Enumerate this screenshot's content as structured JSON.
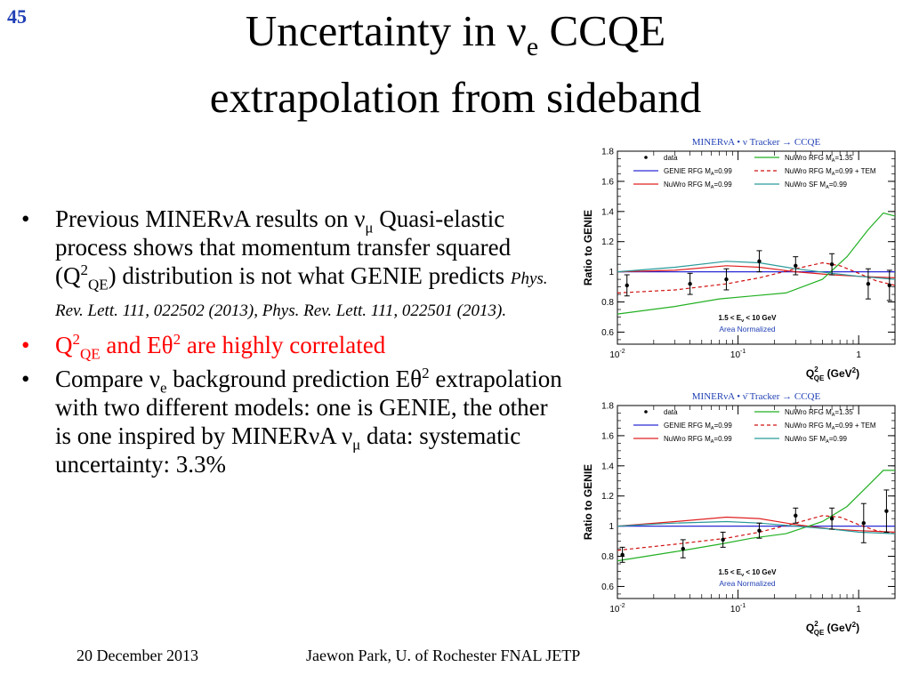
{
  "slide_number": "45",
  "title": {
    "line1_pre": "Uncertainty in ν",
    "line1_sub": "e",
    "line1_post": " CCQE",
    "line2": "extrapolation from sideband"
  },
  "bullets": {
    "b1_a": "Previous MINERνA results on ν",
    "b1_sub1": "μ",
    "b1_b": " Quasi-elastic process shows that momentum transfer squared (Q",
    "b1_sup": "2",
    "b1_sub2": "QE",
    "b1_c": ") distribution is not what GENIE predicts ",
    "b1_ref": "Phys. Rev. Lett. 111, 022502 (2013), Phys. Rev. Lett. 111, 022501 (2013).",
    "b2_a": "Q",
    "b2_sup1": "2",
    "b2_sub": "QE",
    "b2_b": "  and Eθ",
    "b2_sup2": "2",
    "b2_c": "  are highly correlated",
    "b3_a": "Compare ν",
    "b3_sub1": "e",
    "b3_b": " background prediction Eθ",
    "b3_sup": "2",
    "b3_c": " extrapolation with two different models: one is GENIE, the other is one inspired by MINERνA ν",
    "b3_sub2": "μ",
    "b3_d": " data:  systematic uncertainty:  3.3%"
  },
  "footer": {
    "date": "20 December 2013",
    "author": "Jaewon Park, U. of Rochester  FNAL JETP"
  },
  "colors": {
    "slide_number": "#1f3fb4",
    "highlight_bullet": "#ff0000",
    "plot_header": "#1f3fb4",
    "area_normalized": "#1f3fb4"
  },
  "chart_data": [
    {
      "type": "line",
      "title": "MINERνA •  ν Tracker → CCQE",
      "xlabel": "Q",
      "xlabel_sup": "2",
      "xlabel_sub": "QE",
      "xlabel_unit": " (GeV",
      "xlabel_unit_sup": "2",
      "xlabel_close": ")",
      "ylabel": "Ratio to GENIE",
      "xscale": "log",
      "xlim": [
        0.01,
        2
      ],
      "ylim": [
        0.52,
        1.8
      ],
      "yticks": [
        0.6,
        0.8,
        1,
        1.2,
        1.4,
        1.6,
        1.8
      ],
      "ytick_labels": [
        "0.6",
        "0.8",
        "1",
        "1.2",
        "1.4",
        "1.6",
        "1.8"
      ],
      "xticks": [
        0.01,
        0.1,
        1
      ],
      "xtick_base": [
        "10",
        "10",
        "1"
      ],
      "xtick_exp": [
        "-2",
        "-1",
        ""
      ],
      "grid": false,
      "legend_placement": "top",
      "annotation_range": "1.5 < E",
      "annotation_range_sub": "ν",
      "annotation_range_post": " < 10 GeV",
      "annotation_norm": "Area Normalized",
      "series": [
        {
          "name": "data",
          "kind": "points",
          "color": "#000000",
          "x": [
            0.012,
            0.04,
            0.08,
            0.15,
            0.3,
            0.6,
            1.2,
            1.8
          ],
          "y": [
            0.91,
            0.92,
            0.95,
            1.07,
            1.04,
            1.05,
            0.92,
            0.91
          ],
          "err": [
            0.07,
            0.07,
            0.07,
            0.07,
            0.06,
            0.07,
            0.1,
            0.1
          ]
        },
        {
          "name": "GENIE RFG M",
          "name_sub": "A",
          "name_post": "=0.99",
          "kind": "line",
          "color": "#2a2ad6",
          "dash": "",
          "x": [
            0.01,
            2
          ],
          "y": [
            1.0,
            1.0
          ]
        },
        {
          "name": "NuWro RFG M",
          "name_sub": "A",
          "name_post": "=0.99",
          "kind": "line",
          "color": "#e02020",
          "dash": "",
          "x": [
            0.01,
            0.03,
            0.08,
            0.15,
            0.3,
            0.6,
            1,
            2
          ],
          "y": [
            1.0,
            1.01,
            1.04,
            1.03,
            1.0,
            0.98,
            0.97,
            0.96
          ]
        },
        {
          "name": "NuWro RFG M",
          "name_sub": "A",
          "name_post": "=1.35",
          "kind": "line",
          "color": "#22b022",
          "dash": "",
          "x": [
            0.01,
            0.03,
            0.07,
            0.13,
            0.25,
            0.5,
            0.8,
            1.2,
            1.6,
            2
          ],
          "y": [
            0.72,
            0.77,
            0.82,
            0.84,
            0.86,
            0.95,
            1.1,
            1.28,
            1.39,
            1.37
          ]
        },
        {
          "name": "NuWro RFG M",
          "name_sub": "A",
          "name_post": "=0.99 + TEM",
          "kind": "line",
          "color": "#d01010",
          "dash": "4,3",
          "x": [
            0.01,
            0.03,
            0.08,
            0.15,
            0.3,
            0.5,
            0.7,
            1,
            1.4,
            2
          ],
          "y": [
            0.86,
            0.88,
            0.92,
            0.96,
            1.02,
            1.06,
            1.04,
            0.99,
            0.94,
            0.91
          ]
        },
        {
          "name": "NuWro SF M",
          "name_sub": "A",
          "name_post": "=0.99",
          "kind": "line",
          "color": "#2a9a9a",
          "dash": "",
          "x": [
            0.01,
            0.03,
            0.08,
            0.15,
            0.3,
            0.6,
            1,
            2
          ],
          "y": [
            1.0,
            1.03,
            1.07,
            1.06,
            1.02,
            0.99,
            0.97,
            0.95
          ]
        }
      ]
    },
    {
      "type": "line",
      "title": "MINERνA •  ν̄ Tracker → CCQE",
      "xlabel": "Q",
      "xlabel_sup": "2",
      "xlabel_sub": "QE",
      "xlabel_unit": " (GeV",
      "xlabel_unit_sup": "2",
      "xlabel_close": ")",
      "ylabel": "Ratio to GENIE",
      "xscale": "log",
      "xlim": [
        0.01,
        2
      ],
      "ylim": [
        0.52,
        1.8
      ],
      "yticks": [
        0.6,
        0.8,
        1,
        1.2,
        1.4,
        1.6,
        1.8
      ],
      "ytick_labels": [
        "0.6",
        "0.8",
        "1",
        "1.2",
        "1.4",
        "1.6",
        "1.8"
      ],
      "xticks": [
        0.01,
        0.1,
        1
      ],
      "xtick_base": [
        "10",
        "10",
        "1"
      ],
      "xtick_exp": [
        "-2",
        "-1",
        ""
      ],
      "grid": false,
      "legend_placement": "top",
      "annotation_range": "1.5 < E",
      "annotation_range_sub": "ν",
      "annotation_range_post": " < 10 GeV",
      "annotation_norm": "Area Normalized",
      "series": [
        {
          "name": "data",
          "kind": "points",
          "color": "#000000",
          "x": [
            0.011,
            0.035,
            0.075,
            0.15,
            0.3,
            0.6,
            1.1,
            1.7
          ],
          "y": [
            0.81,
            0.85,
            0.91,
            0.97,
            1.07,
            1.05,
            1.02,
            1.1
          ],
          "err": [
            0.05,
            0.06,
            0.05,
            0.05,
            0.05,
            0.07,
            0.13,
            0.14
          ]
        },
        {
          "name": "GENIE RFG M",
          "name_sub": "A",
          "name_post": "=0.99",
          "kind": "line",
          "color": "#2a2ad6",
          "dash": "",
          "x": [
            0.01,
            2
          ],
          "y": [
            1.0,
            1.0
          ]
        },
        {
          "name": "NuWro RFG M",
          "name_sub": "A",
          "name_post": "=0.99",
          "kind": "line",
          "color": "#e02020",
          "dash": "",
          "x": [
            0.01,
            0.03,
            0.08,
            0.15,
            0.3,
            0.6,
            1,
            2
          ],
          "y": [
            1.0,
            1.03,
            1.06,
            1.05,
            1.01,
            0.98,
            0.97,
            0.96
          ]
        },
        {
          "name": "NuWro RFG M",
          "name_sub": "A",
          "name_post": "=1.35",
          "kind": "line",
          "color": "#22b022",
          "dash": "",
          "x": [
            0.01,
            0.03,
            0.07,
            0.13,
            0.25,
            0.5,
            0.8,
            1.2,
            1.6,
            2
          ],
          "y": [
            0.77,
            0.83,
            0.88,
            0.92,
            0.95,
            1.03,
            1.13,
            1.27,
            1.37,
            1.37
          ]
        },
        {
          "name": "NuWro RFG M",
          "name_sub": "A",
          "name_post": "=0.99 + TEM",
          "kind": "line",
          "color": "#d01010",
          "dash": "4,3",
          "x": [
            0.01,
            0.03,
            0.08,
            0.15,
            0.3,
            0.5,
            0.7,
            1,
            1.4,
            2
          ],
          "y": [
            0.84,
            0.88,
            0.92,
            0.96,
            1.02,
            1.07,
            1.06,
            1.01,
            0.97,
            0.95
          ]
        },
        {
          "name": "NuWro SF M",
          "name_sub": "A",
          "name_post": "=0.99",
          "kind": "line",
          "color": "#2a9a9a",
          "dash": "",
          "x": [
            0.01,
            0.03,
            0.08,
            0.15,
            0.3,
            0.6,
            1,
            2
          ],
          "y": [
            1.0,
            1.02,
            1.03,
            1.02,
            1.0,
            0.98,
            0.96,
            0.95
          ]
        }
      ]
    }
  ]
}
